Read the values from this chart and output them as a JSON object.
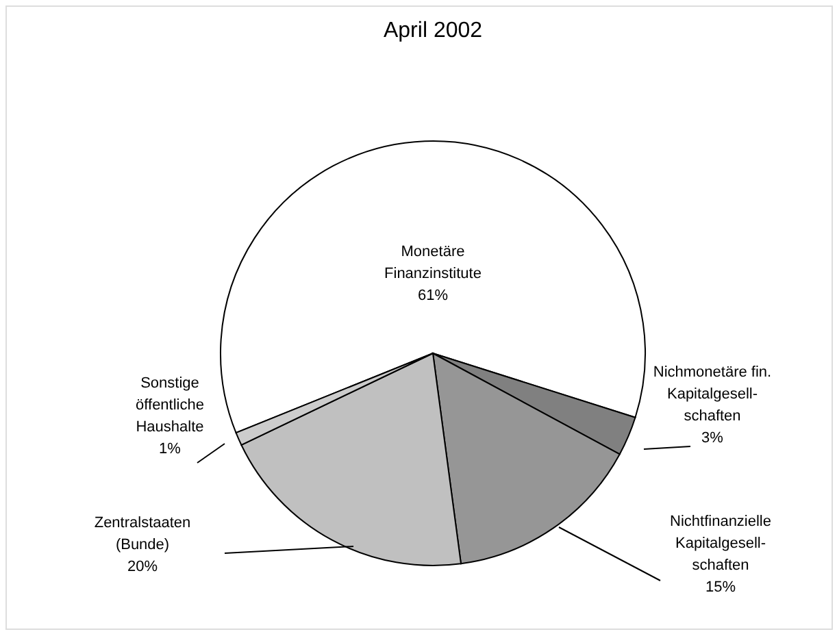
{
  "chart_data": {
    "type": "pie",
    "title": "April 2002",
    "categories": [
      "Monetäre\nFinanzinstitute",
      "Nichmonetäre fin.\nKapitalgesell-\nschaften",
      "Nichtfinanzielle\nKapitalgesell-\nschaften",
      "Zentralstaaten\n(Bunde)",
      "Sonstige\nöffentliche\nHaushalte"
    ],
    "values": [
      61,
      3,
      15,
      20,
      1
    ],
    "value_labels": [
      "61%",
      "3%",
      "15%",
      "20%",
      "1%"
    ],
    "colors": [
      "#ffffff",
      "#808080",
      "#969696",
      "#c0c0c0",
      "#cccccc"
    ],
    "legend": false
  }
}
